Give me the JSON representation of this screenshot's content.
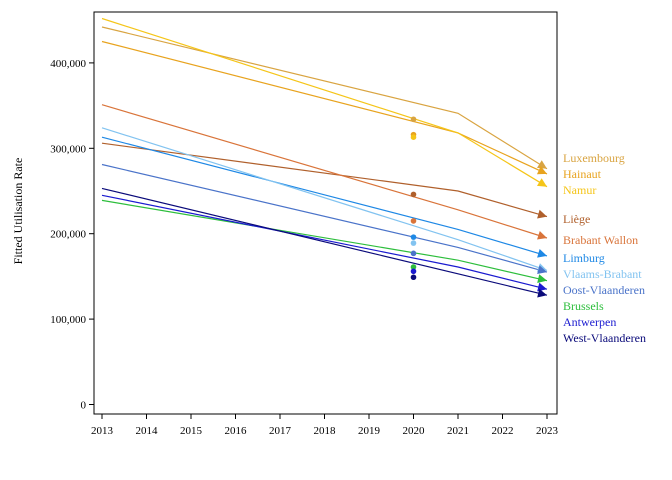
{
  "chart_data": {
    "type": "line",
    "title": "",
    "xlabel": "",
    "ylabel": "Fitted Utilisation Rate",
    "x_ticks": [
      "2013",
      "2014",
      "2015",
      "2016",
      "2017",
      "2018",
      "2019",
      "2020",
      "2021",
      "2022",
      "2023"
    ],
    "y_ticks": [
      {
        "value": 0,
        "label": "0"
      },
      {
        "value": 100000,
        "label": "100,000"
      },
      {
        "value": 200000,
        "label": "200,000"
      },
      {
        "value": 300000,
        "label": "300,000"
      },
      {
        "value": 400000,
        "label": "400,000"
      }
    ],
    "xlim": [
      2013,
      2023
    ],
    "ylim": [
      -12000,
      460000
    ],
    "grid": false,
    "legend": "right, labels at line ends",
    "x": [
      2013,
      2021,
      2023
    ],
    "series": [
      {
        "name": "Luxembourg",
        "color": "#D9A441",
        "values": [
          442000,
          341000,
          276000
        ],
        "point_2020": 334000
      },
      {
        "name": "Hainaut",
        "color": "#E8A31E",
        "values": [
          425000,
          318000,
          270000
        ],
        "point_2020": 316000
      },
      {
        "name": "Namur",
        "color": "#F5C518",
        "values": [
          452000,
          318000,
          255000
        ],
        "point_2020": 313000
      },
      {
        "name": "Liège",
        "color": "#B0602C",
        "values": [
          306000,
          250000,
          220000
        ],
        "point_2020": 246000
      },
      {
        "name": "Brabant Wallon",
        "color": "#D9743A",
        "values": [
          351000,
          228000,
          195000
        ],
        "point_2020": 215000
      },
      {
        "name": "Limburg",
        "color": "#1E88E5",
        "values": [
          313000,
          205000,
          174000
        ],
        "point_2020": 196000
      },
      {
        "name": "Vlaams-Brabant",
        "color": "#82C3F0",
        "values": [
          324000,
          193000,
          157000
        ],
        "point_2020": 189000
      },
      {
        "name": "Oost-Vlaanderen",
        "color": "#4A73C9",
        "values": [
          281000,
          184000,
          155000
        ],
        "point_2020": 177000
      },
      {
        "name": "Brussels",
        "color": "#2DBE3C",
        "values": [
          239000,
          169000,
          145000
        ],
        "point_2020": 161000
      },
      {
        "name": "Antwerpen",
        "color": "#1A1AD0",
        "values": [
          245000,
          161000,
          135000
        ],
        "point_2020": 156000
      },
      {
        "name": "West-Vlaanderen",
        "color": "#0A0A7A",
        "values": [
          253000,
          153000,
          128000
        ],
        "point_2020": 149000
      }
    ]
  }
}
